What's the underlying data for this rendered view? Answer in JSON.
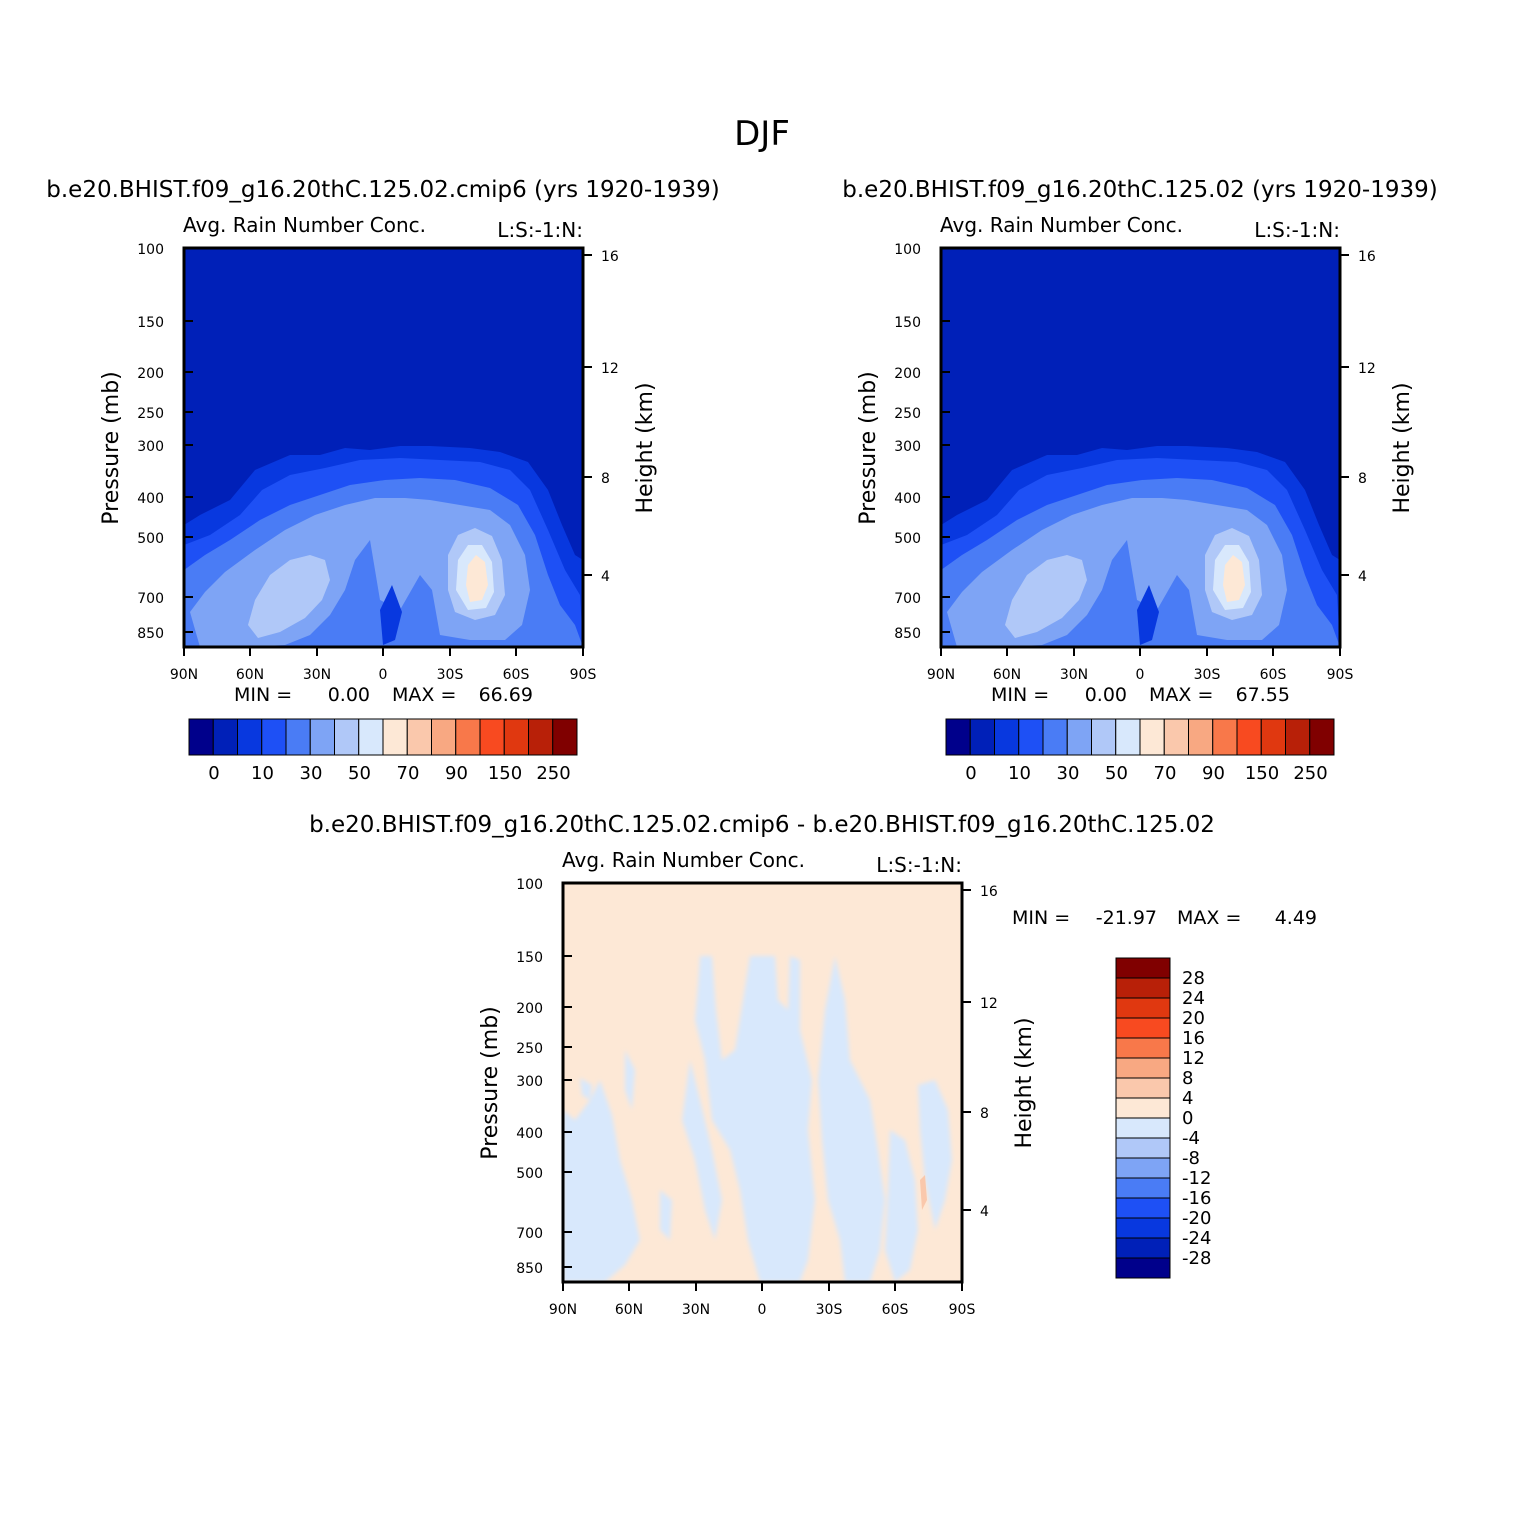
{
  "page_title": "DJF",
  "colors": {
    "scale": [
      "#00008b",
      "#0020b8",
      "#0838df",
      "#1e50f5",
      "#4a7cf5",
      "#7ea4f5",
      "#b0c8f8",
      "#d8e8fc",
      "#fde8d6",
      "#fac8ac",
      "#f8a882",
      "#f8784a",
      "#f84a20",
      "#e03810",
      "#b82008",
      "#800000"
    ]
  },
  "panels": [
    {
      "id": "panel-1",
      "case_title": "b.e20.BHIST.f09_g16.20thC.125.02.cmip6 (yrs 1920-1939)",
      "variable": "Avg. Rain Number Conc.",
      "level_tag": "L:S:-1:N:",
      "min_label": "MIN =",
      "min_value": "0.00",
      "max_label": "MAX =",
      "max_value": "66.69"
    },
    {
      "id": "panel-2",
      "case_title": "b.e20.BHIST.f09_g16.20thC.125.02 (yrs 1920-1939)",
      "variable": "Avg. Rain Number Conc.",
      "level_tag": "L:S:-1:N:",
      "min_label": "MIN =",
      "min_value": "0.00",
      "max_label": "MAX =",
      "max_value": "67.55"
    },
    {
      "id": "panel-diff",
      "case_title": "b.e20.BHIST.f09_g16.20thC.125.02.cmip6 - b.e20.BHIST.f09_g16.20thC.125.02",
      "variable": "Avg. Rain Number Conc.",
      "level_tag": "L:S:-1:N:",
      "min_label": "MIN =",
      "min_value": "-21.97",
      "max_label": "MAX =",
      "max_value": "4.49"
    }
  ],
  "chart_data": [
    {
      "type": "heatmap",
      "title": "Avg. Rain Number Conc.",
      "ylabel": "Pressure (mb)",
      "y2label": "Height (km)",
      "x_ticks": [
        "90N",
        "60N",
        "30N",
        "0",
        "30S",
        "60S",
        "90S"
      ],
      "y_ticks": [
        100,
        150,
        200,
        250,
        300,
        400,
        500,
        700,
        850
      ],
      "y2_ticks": [
        16,
        12,
        8,
        4
      ],
      "colorbar_labels": [
        "0",
        "10",
        "30",
        "50",
        "70",
        "90",
        "150",
        "250"
      ],
      "min": 0.0,
      "max": 66.69
    },
    {
      "type": "heatmap",
      "title": "Avg. Rain Number Conc.",
      "ylabel": "Pressure (mb)",
      "y2label": "Height (km)",
      "x_ticks": [
        "90N",
        "60N",
        "30N",
        "0",
        "30S",
        "60S",
        "90S"
      ],
      "y_ticks": [
        100,
        150,
        200,
        250,
        300,
        400,
        500,
        700,
        850
      ],
      "y2_ticks": [
        16,
        12,
        8,
        4
      ],
      "colorbar_labels": [
        "0",
        "10",
        "30",
        "50",
        "70",
        "90",
        "150",
        "250"
      ],
      "min": 0.0,
      "max": 67.55
    },
    {
      "type": "heatmap",
      "title": "Avg. Rain Number Conc.",
      "ylabel": "Pressure (mb)",
      "y2label": "Height (km)",
      "x_ticks": [
        "90N",
        "60N",
        "30N",
        "0",
        "30S",
        "60S",
        "90S"
      ],
      "y_ticks": [
        100,
        150,
        200,
        250,
        300,
        400,
        500,
        700,
        850
      ],
      "y2_ticks": [
        16,
        12,
        8,
        4
      ],
      "colorbar_labels": [
        "28",
        "24",
        "20",
        "16",
        "12",
        "8",
        "4",
        "0",
        "-4",
        "-8",
        "-12",
        "-16",
        "-20",
        "-24",
        "-28"
      ],
      "min": -21.97,
      "max": 4.49
    }
  ]
}
